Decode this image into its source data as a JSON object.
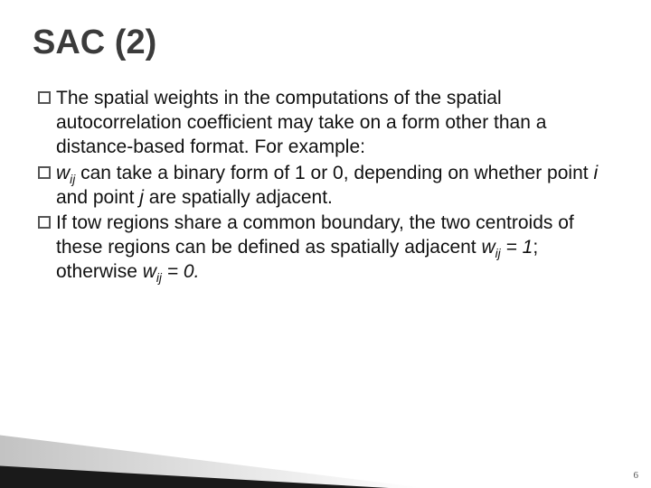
{
  "title": "SAC (2)",
  "bullets": [
    {
      "text": "The spatial weights in the computations of the spatial autocorrelation coefficient may take on a form other than a distance-based format. For example:"
    },
    {
      "prefix_italic": "w",
      "prefix_sub": "ij",
      "text_rest": " can take a binary form of 1 or 0, depending on whether point ",
      "italic_i": "i",
      "mid": " and point ",
      "italic_j": "j",
      "tail": " are spatially adjacent."
    },
    {
      "lead": "If tow regions share a common boundary, the two centroids of these regions can be defined as spatially adjacent ",
      "wij1": "w",
      "wij1_sub": "ij",
      "eq1": " = 1",
      "sep": "; otherwise ",
      "wij2": "w",
      "wij2_sub": "ij",
      "eq2": " = 0."
    }
  ],
  "page_number": "6",
  "colors": {
    "title": "#3b3b3b",
    "body": "#111111",
    "bullet_border": "#555555",
    "wedge_dark": "#1a1a1a"
  }
}
